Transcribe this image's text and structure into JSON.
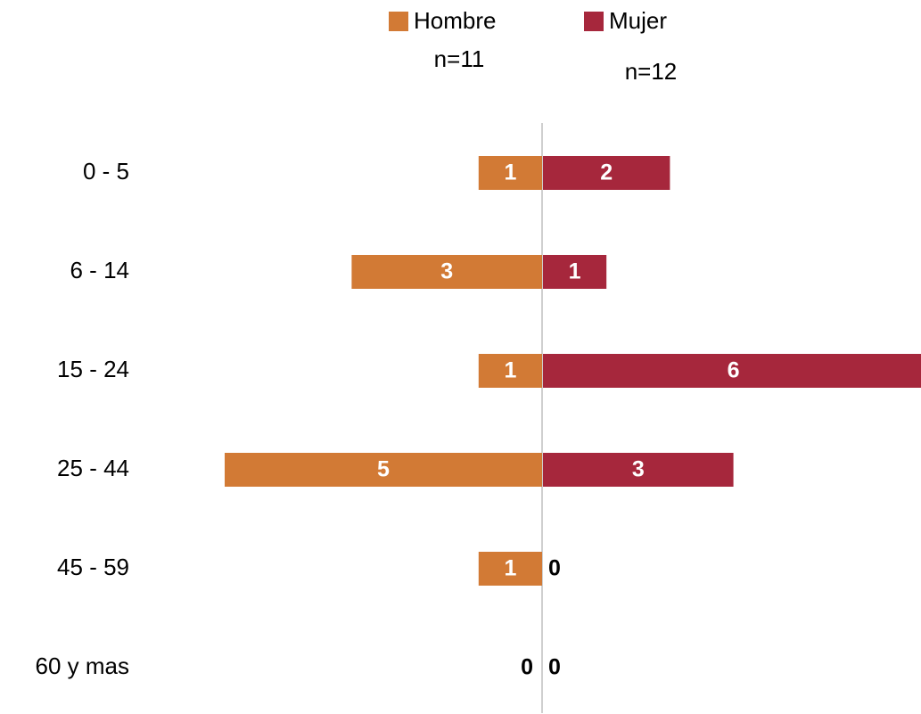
{
  "chart_data": {
    "type": "bar",
    "categories": [
      "0 - 5",
      "6 - 14",
      "15 - 24",
      "25 - 44",
      "45 - 59",
      "60 y mas"
    ],
    "series": [
      {
        "name": "Hombre",
        "color": "#D27A35",
        "values": [
          1,
          3,
          1,
          5,
          1,
          0
        ]
      },
      {
        "name": "Mujer",
        "color": "#A6273C",
        "values": [
          2,
          1,
          6,
          3,
          0,
          0
        ]
      }
    ],
    "annotations": [
      "n=11",
      "n=12"
    ]
  }
}
